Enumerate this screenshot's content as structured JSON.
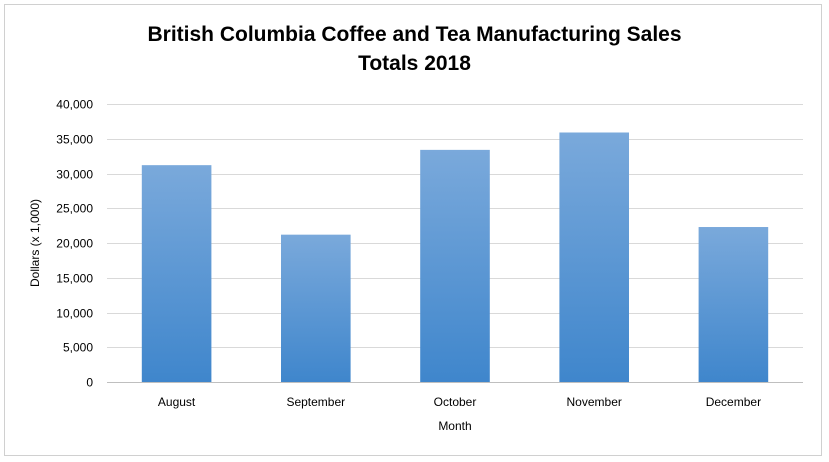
{
  "chart_data": {
    "type": "bar",
    "title_line1": "British Columbia Coffee and Tea Manufacturing Sales",
    "title_line2": "Totals 2018",
    "xlabel": "Month",
    "ylabel": "Dollars (x 1,000)",
    "categories": [
      "August",
      "September",
      "October",
      "November",
      "December"
    ],
    "values": [
      31200,
      21200,
      33400,
      35900,
      22300
    ],
    "ylim": [
      0,
      40000
    ],
    "yticks": [
      0,
      5000,
      10000,
      15000,
      20000,
      25000,
      30000,
      35000,
      40000
    ],
    "ytick_labels": [
      "0",
      "5,000",
      "10,000",
      "15,000",
      "20,000",
      "25,000",
      "30,000",
      "35,000",
      "40,000"
    ],
    "grid": true,
    "legend": "none",
    "colors": {
      "bar_top": "#7aa9db",
      "bar_bottom": "#3f86cc",
      "grid": "#d9d9d9",
      "axis": "#bfbfbf"
    }
  }
}
